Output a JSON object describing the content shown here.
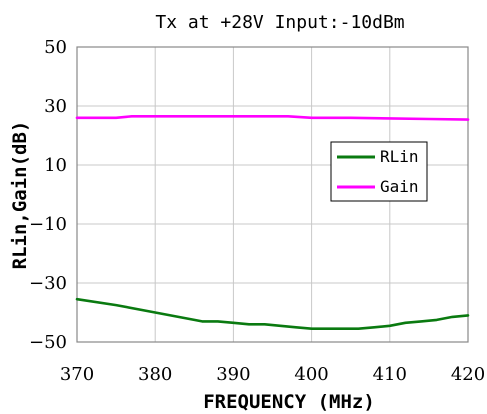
{
  "chart_data": {
    "type": "line",
    "title": "Tx  at +28V Input:-10dBm",
    "xlabel": "FREQUENCY (MHz)",
    "ylabel": "RLin,Gain(dB)",
    "xlim": [
      370,
      420
    ],
    "ylim": [
      -50,
      50
    ],
    "xticks": [
      "370",
      "380",
      "390",
      "400",
      "410",
      "420"
    ],
    "yticks": [
      "50",
      "30",
      "10",
      "−10",
      "−30",
      "−50"
    ],
    "grid": true,
    "legend_position": "right",
    "series": [
      {
        "name": "RLin",
        "color": "#0a7a10",
        "x": [
          370,
          375,
          380,
          385,
          386,
          388,
          390,
          392,
          394,
          396,
          398,
          400,
          402,
          404,
          406,
          408,
          410,
          412,
          414,
          416,
          418,
          420
        ],
        "y": [
          -35.5,
          -37.5,
          -40,
          -42.5,
          -43,
          -43,
          -43.5,
          -44,
          -44,
          -44.5,
          -45,
          -45.5,
          -45.5,
          -45.5,
          -45.5,
          -45,
          -44.5,
          -43.5,
          -43,
          -42.5,
          -41.5,
          -41
        ]
      },
      {
        "name": "Gain",
        "color": "#ff00ff",
        "x": [
          370,
          372,
          375,
          377,
          380,
          385,
          390,
          395,
          397,
          400,
          405,
          410,
          415,
          420
        ],
        "y": [
          26,
          26,
          26,
          26.5,
          26.5,
          26.5,
          26.5,
          26.5,
          26.5,
          26,
          26,
          25.8,
          25.6,
          25.4
        ]
      }
    ]
  }
}
